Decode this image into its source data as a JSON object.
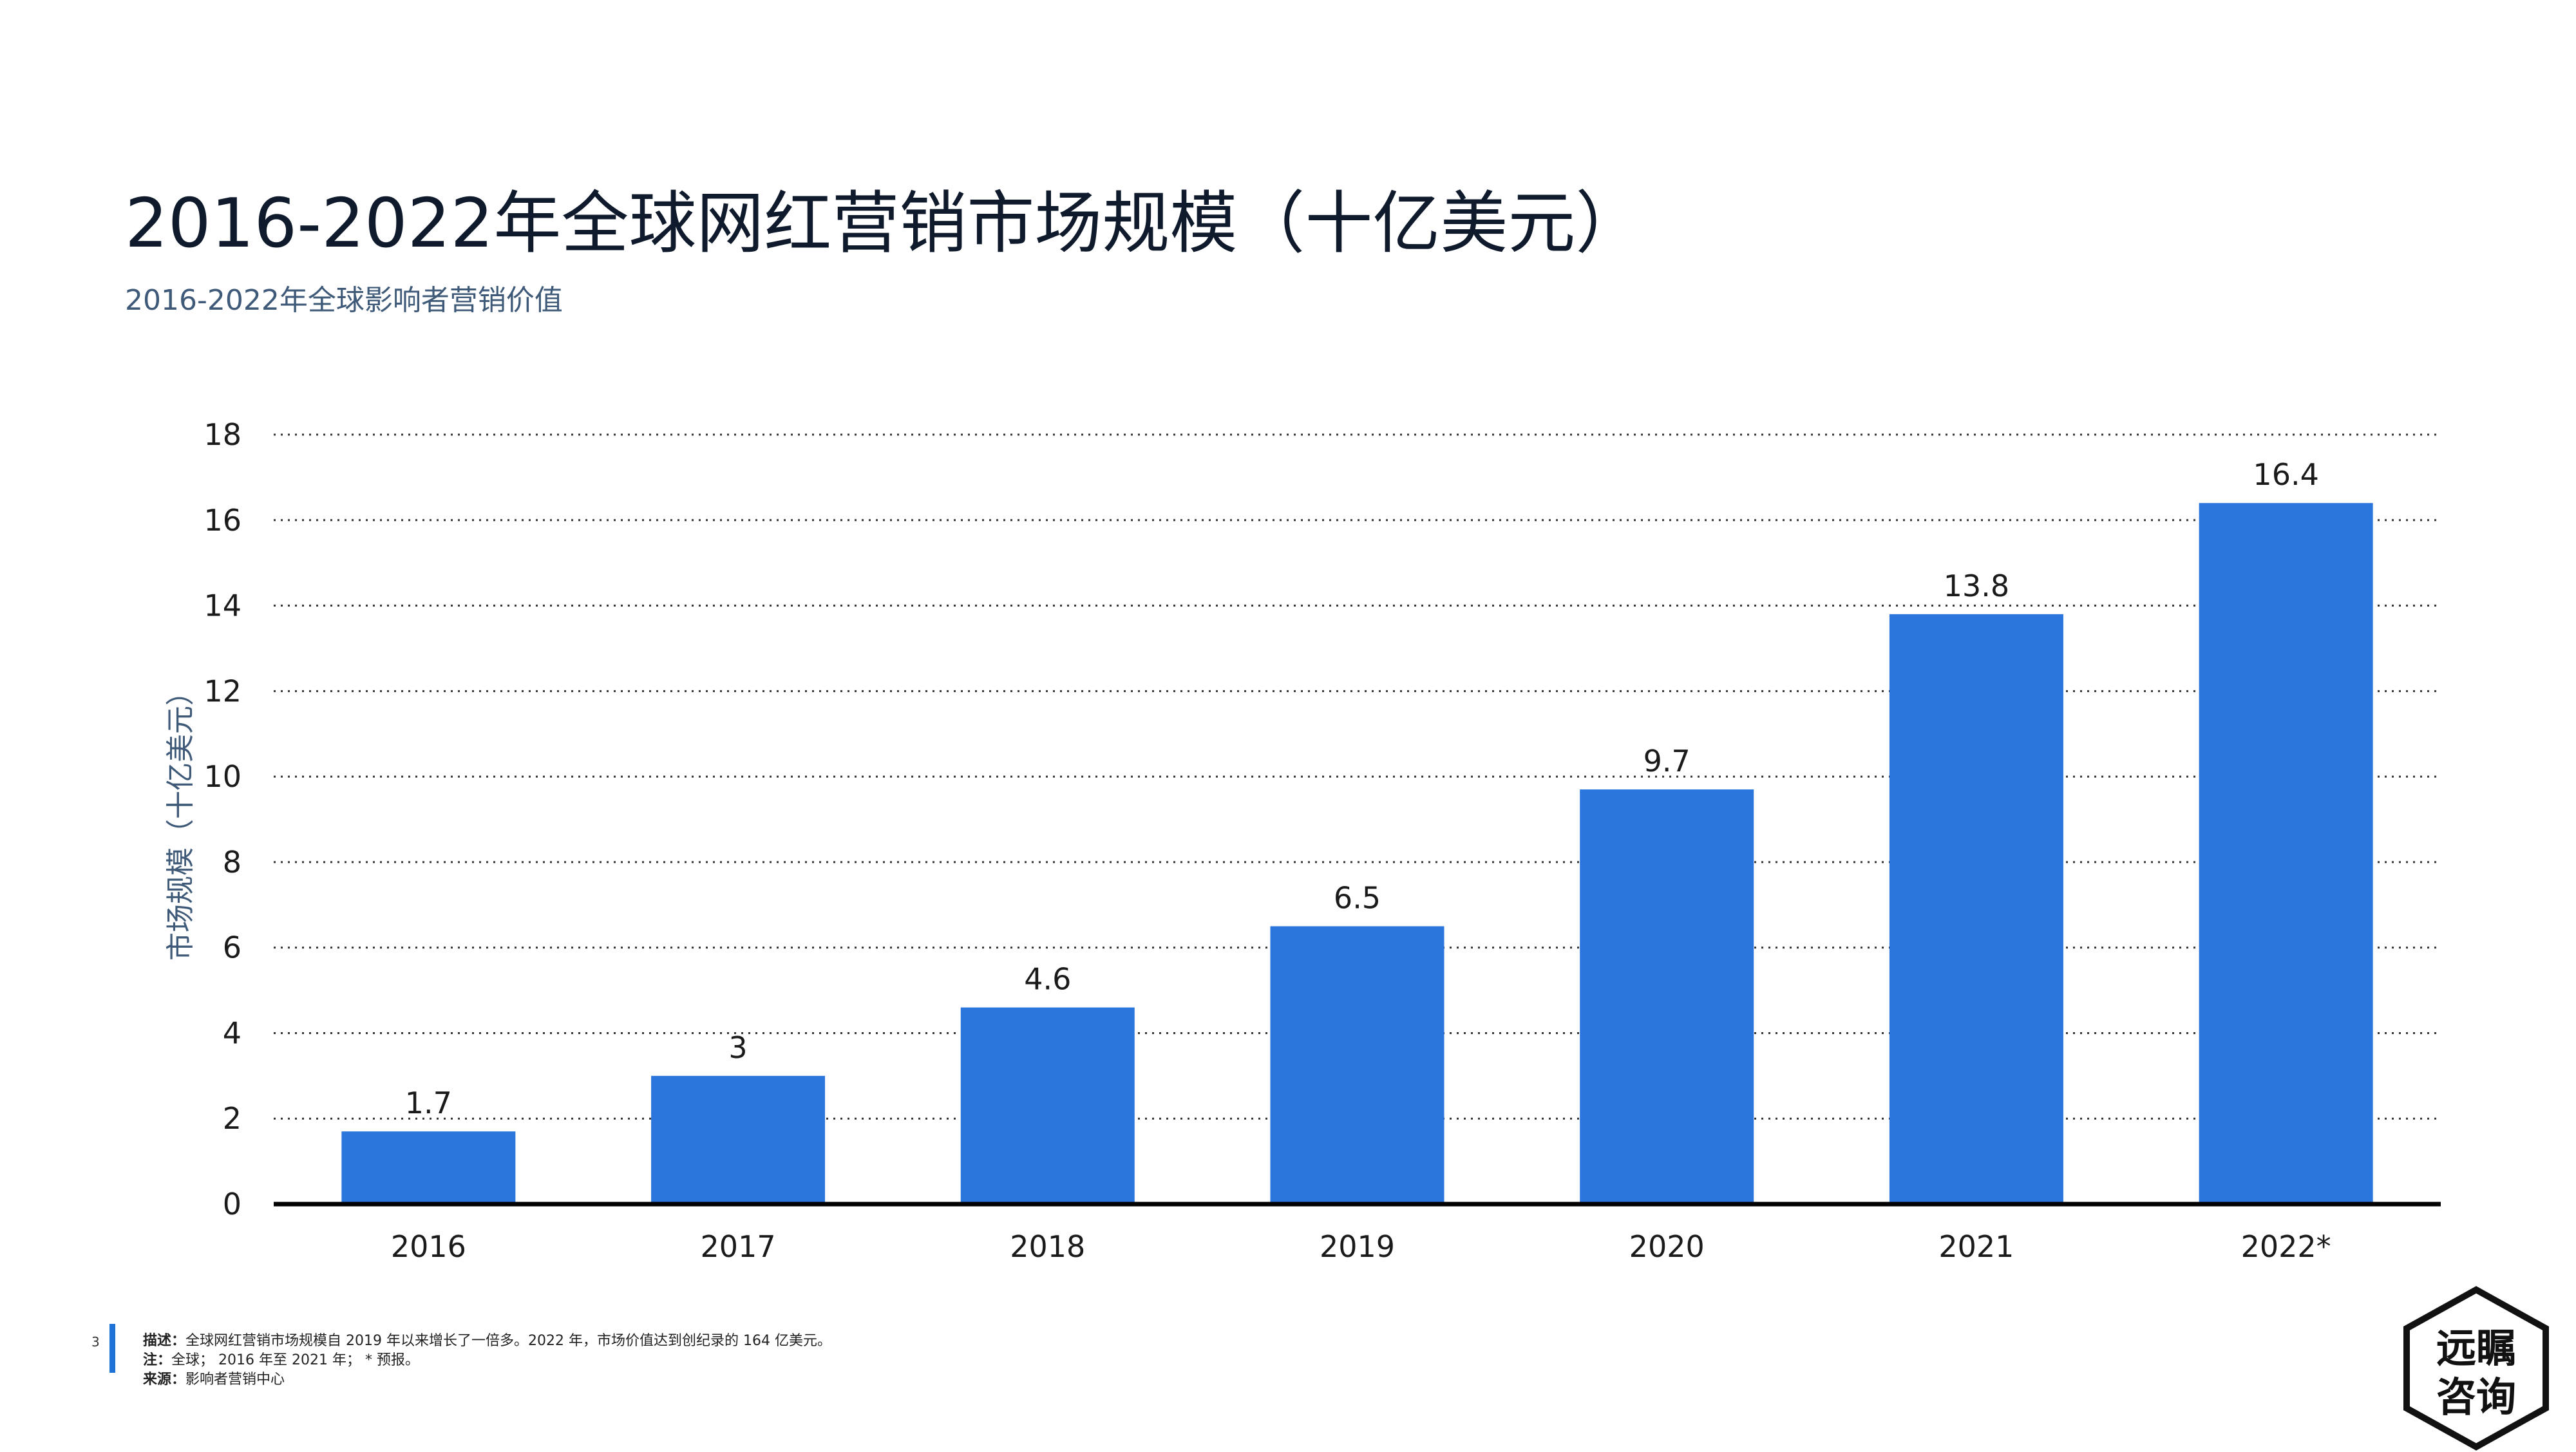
{
  "title": "2016-2022年全球网红营销市场规模（十亿美元）",
  "subtitle": "2016-2022年全球影响者营销价值",
  "page_number": "3",
  "notes": {
    "desc_label": "描述：",
    "desc_text": "全球网红营销市场规模自 2019 年以来增长了一倍多。2022 年，市场价值达到创纪录的 164 亿美元。",
    "note_label": "注：",
    "note_text": "全球；  2016 年至 2021 年；  * 预报。",
    "source_label": "来源：",
    "source_text": "影响者营销中心"
  },
  "logo": {
    "line1": "远瞩",
    "line2": "咨询"
  },
  "colors": {
    "bar": "#2a76dd",
    "axis": "#000000",
    "grid": "#333333",
    "text": "#1a1a1a",
    "ylabel": "#3e5a78",
    "accent": "#1f73d6"
  },
  "chart_data": {
    "type": "bar",
    "title": "2016-2022年全球网红营销市场规模（十亿美元）",
    "subtitle": "2016-2022年全球影响者营销价值",
    "ylabel": "市场规模（十亿美元）",
    "xlabel": "",
    "categories": [
      "2016",
      "2017",
      "2018",
      "2019",
      "2020",
      "2021",
      "2022*"
    ],
    "values": [
      1.7,
      3,
      4.6,
      6.5,
      9.7,
      13.8,
      16.4
    ],
    "value_labels": [
      "1.7",
      "3",
      "4.6",
      "6.5",
      "9.7",
      "13.8",
      "16.4"
    ],
    "ylim": [
      0,
      18
    ],
    "yticks": [
      0,
      2,
      4,
      6,
      8,
      10,
      12,
      14,
      16,
      18
    ],
    "grid": true,
    "legend": "none"
  }
}
